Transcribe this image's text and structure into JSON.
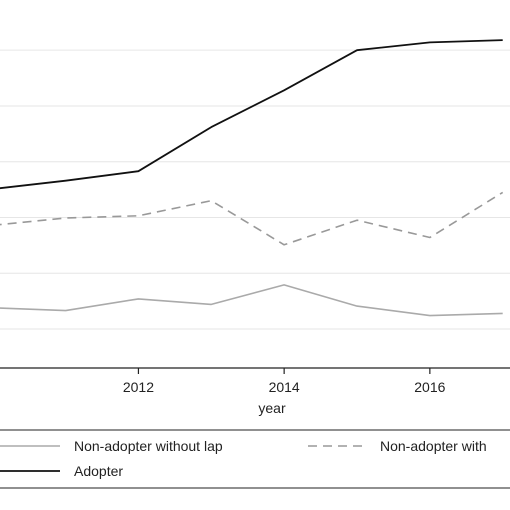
{
  "chart_data": {
    "type": "line",
    "xlabel": "year",
    "ylabel": "",
    "title": "",
    "xlim": [
      2010.1,
      2017.1
    ],
    "ylim": [
      -0.7,
      5.9
    ],
    "x_ticks": [
      2012,
      2014,
      2016
    ],
    "grid": true,
    "gridlines_y": [
      0,
      1,
      2,
      3,
      4,
      5,
      6
    ],
    "legend_position": "bottom",
    "series": [
      {
        "name": "Non-adopter without lap",
        "style": "solid",
        "color": "#aaaaaa",
        "x": [
          2010,
          2011,
          2012,
          2013,
          2014,
          2015,
          2016,
          2017
        ],
        "values": [
          0.38,
          0.33,
          0.54,
          0.44,
          0.79,
          0.41,
          0.24,
          0.28
        ]
      },
      {
        "name": "Non-adopter with",
        "style": "dashed",
        "color": "#999999",
        "x": [
          2010,
          2011,
          2012,
          2013,
          2014,
          2015,
          2016,
          2017
        ],
        "values": [
          1.86,
          1.99,
          2.03,
          2.3,
          1.51,
          1.95,
          1.64,
          2.45
        ]
      },
      {
        "name": "Adopter",
        "style": "solid",
        "color": "#111111",
        "x": [
          2010,
          2011,
          2012,
          2013,
          2014,
          2015,
          2016,
          2017
        ],
        "values": [
          2.51,
          2.66,
          2.83,
          3.62,
          4.28,
          5.0,
          5.14,
          5.18
        ]
      }
    ]
  }
}
